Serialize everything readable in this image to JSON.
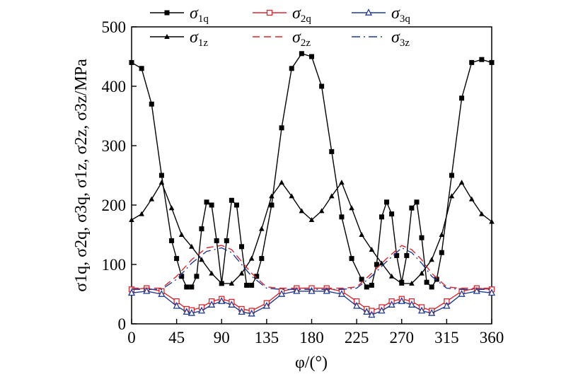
{
  "chart_data": {
    "type": "line",
    "xlabel": "φ/(°)",
    "ylabel": "σ1q, σ2q, σ3q, σ1z, σ2z, σ3z/MPa",
    "xlim": [
      0,
      360
    ],
    "ylim": [
      0,
      500
    ],
    "xticks": [
      "0",
      "45",
      "90",
      "135",
      "180",
      "225",
      "270",
      "315",
      "360"
    ],
    "yticks": [
      "0",
      "100",
      "200",
      "300",
      "400",
      "500"
    ],
    "grid": false,
    "legend_position": "top",
    "series": [
      {
        "name": "σ1q",
        "style": "solid",
        "marker": "square",
        "color": "#000000",
        "x": [
          0,
          10,
          20,
          30,
          40,
          45,
          50,
          55,
          60,
          65,
          70,
          75,
          80,
          85,
          90,
          95,
          100,
          105,
          110,
          115,
          120,
          125,
          130,
          140,
          150,
          160,
          170,
          180,
          190,
          200,
          210,
          220,
          230,
          235,
          240,
          245,
          250,
          255,
          260,
          265,
          270,
          275,
          280,
          285,
          290,
          295,
          300,
          305,
          310,
          320,
          330,
          340,
          350,
          360
        ],
        "y": [
          440,
          430,
          370,
          250,
          140,
          110,
          80,
          62,
          62,
          80,
          160,
          205,
          200,
          140,
          68,
          140,
          208,
          200,
          130,
          65,
          65,
          80,
          110,
          200,
          330,
          430,
          455,
          450,
          400,
          290,
          180,
          110,
          75,
          62,
          65,
          100,
          180,
          205,
          185,
          115,
          70,
          115,
          195,
          205,
          145,
          70,
          62,
          75,
          120,
          250,
          380,
          440,
          445,
          440
        ]
      },
      {
        "name": "σ1z",
        "style": "solid",
        "marker": "triangle",
        "color": "#000000",
        "x": [
          0,
          10,
          20,
          30,
          40,
          50,
          60,
          70,
          80,
          90,
          100,
          110,
          120,
          130,
          140,
          150,
          160,
          170,
          180,
          190,
          200,
          210,
          220,
          230,
          240,
          250,
          260,
          270,
          280,
          290,
          300,
          310,
          320,
          330,
          340,
          350,
          360
        ],
        "y": [
          175,
          185,
          210,
          238,
          195,
          150,
          130,
          108,
          85,
          68,
          68,
          85,
          110,
          160,
          215,
          238,
          215,
          190,
          175,
          190,
          215,
          238,
          195,
          150,
          125,
          102,
          80,
          68,
          68,
          85,
          108,
          150,
          215,
          238,
          210,
          185,
          172
        ]
      },
      {
        "name": "σ2q",
        "style": "solid",
        "marker": "square-open",
        "color": "#d9262e",
        "x": [
          0,
          15,
          30,
          45,
          55,
          60,
          70,
          80,
          90,
          100,
          110,
          120,
          135,
          150,
          165,
          180,
          195,
          210,
          225,
          235,
          240,
          250,
          260,
          270,
          280,
          290,
          300,
          315,
          330,
          345,
          360
        ],
        "y": [
          58,
          60,
          55,
          38,
          25,
          23,
          28,
          38,
          42,
          37,
          25,
          22,
          35,
          55,
          60,
          60,
          60,
          55,
          38,
          25,
          22,
          28,
          38,
          42,
          38,
          28,
          22,
          38,
          55,
          60,
          58
        ]
      },
      {
        "name": "σ3q",
        "style": "solid",
        "marker": "triangle-open",
        "color": "#1f3a93",
        "x": [
          0,
          15,
          30,
          45,
          55,
          60,
          70,
          80,
          90,
          100,
          110,
          120,
          135,
          150,
          165,
          180,
          195,
          210,
          225,
          235,
          240,
          250,
          260,
          270,
          280,
          290,
          300,
          315,
          330,
          345,
          360
        ],
        "y": [
          52,
          55,
          50,
          30,
          20,
          18,
          22,
          32,
          38,
          32,
          20,
          17,
          30,
          50,
          55,
          55,
          55,
          50,
          30,
          20,
          15,
          22,
          32,
          38,
          32,
          22,
          18,
          30,
          50,
          55,
          52
        ]
      },
      {
        "name": "σ2z",
        "style": "dashed",
        "marker": "none",
        "color": "#d9262e",
        "x": [
          0,
          20,
          30,
          45,
          60,
          75,
          90,
          100,
          110,
          120,
          135,
          150,
          180,
          210,
          225,
          240,
          255,
          270,
          280,
          290,
          300,
          315,
          330,
          360
        ],
        "y": [
          60,
          60,
          60,
          80,
          108,
          128,
          132,
          125,
          105,
          85,
          62,
          60,
          60,
          60,
          62,
          85,
          110,
          132,
          125,
          108,
          85,
          62,
          60,
          60
        ]
      },
      {
        "name": "σ3z",
        "style": "dash-dot",
        "marker": "none",
        "color": "#1f3a93",
        "x": [
          0,
          20,
          30,
          45,
          60,
          75,
          90,
          100,
          110,
          120,
          135,
          150,
          180,
          210,
          225,
          240,
          255,
          270,
          280,
          290,
          300,
          315,
          330,
          360
        ],
        "y": [
          58,
          58,
          58,
          75,
          102,
          122,
          128,
          120,
          100,
          80,
          60,
          58,
          58,
          58,
          60,
          80,
          105,
          128,
          120,
          102,
          80,
          60,
          58,
          58
        ]
      }
    ]
  }
}
